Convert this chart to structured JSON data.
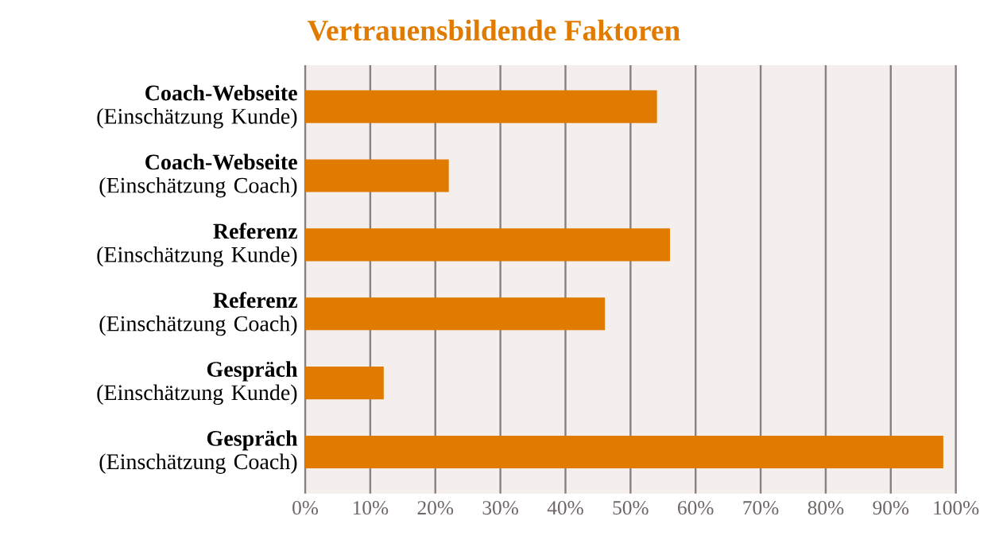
{
  "chart_data": {
    "type": "bar",
    "orientation": "horizontal",
    "title": "Vertrauensbildende Faktoren",
    "categories": [
      "**Coach-Webseite** (Einschätzung Kunde)",
      "**Coach-Webseite** (Einschätzung Coach)",
      "**Referenz** (Einschätzung Kunde)",
      "**Referenz** (Einschätzung Coach)",
      "**Gespräch** (Einschätzung Kunde)",
      "**Gespräch** (Einschätzung Coach)"
    ],
    "values": [
      54,
      22,
      56,
      46,
      12,
      98
    ],
    "color": "#e07b00",
    "xlim": [
      0,
      100
    ],
    "xticks": [
      {
        "value": 0,
        "label": "0%"
      },
      {
        "value": 10,
        "label": "10%"
      },
      {
        "value": 20,
        "label": "20%"
      },
      {
        "value": 30,
        "label": "30%"
      },
      {
        "value": 40,
        "label": "40%"
      },
      {
        "value": 50,
        "label": "50%"
      },
      {
        "value": 60,
        "label": "60%"
      },
      {
        "value": 70,
        "label": "70%"
      },
      {
        "value": 80,
        "label": "80%"
      },
      {
        "value": 90,
        "label": "90%"
      },
      {
        "value": 100,
        "label": "100%"
      }
    ],
    "grid": "x"
  }
}
